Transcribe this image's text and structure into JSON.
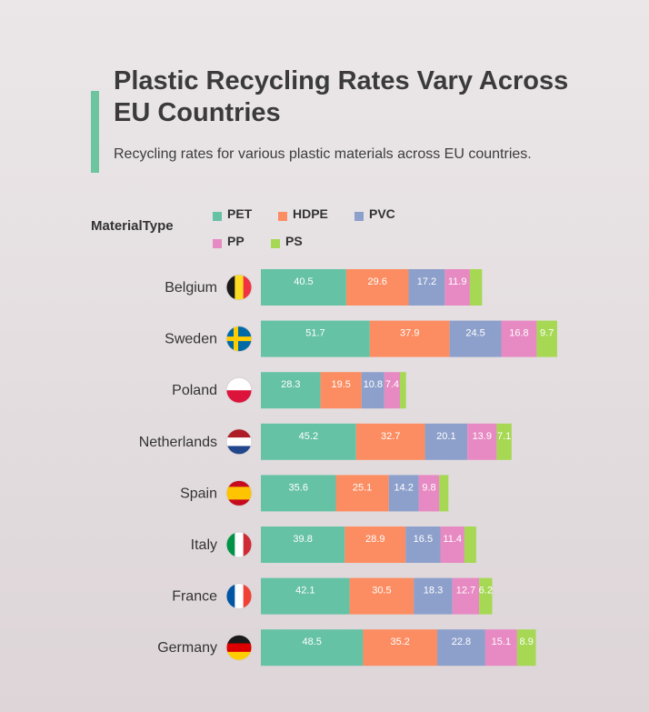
{
  "header": {
    "title": "Plastic Recycling Rates Vary Across EU Countries",
    "subtitle": "Recycling rates for various plastic materials across EU countries."
  },
  "legend": {
    "title": "MaterialType",
    "items": [
      {
        "label": "PET",
        "color": "#66c2a5"
      },
      {
        "label": "HDPE",
        "color": "#fc8d62"
      },
      {
        "label": "PVC",
        "color": "#8da0cb"
      },
      {
        "label": "PP",
        "color": "#e78ac3"
      },
      {
        "label": "PS",
        "color": "#a6d854"
      }
    ]
  },
  "chart_data": {
    "type": "bar",
    "orientation": "horizontal",
    "stacked": true,
    "categories": [
      "Belgium",
      "Sweden",
      "Poland",
      "Netherlands",
      "Spain",
      "Italy",
      "France",
      "Germany"
    ],
    "series": [
      {
        "name": "PET",
        "values": [
          40.5,
          51.7,
          28.3,
          45.2,
          35.6,
          39.8,
          42.1,
          48.5
        ]
      },
      {
        "name": "HDPE",
        "values": [
          29.6,
          37.9,
          19.5,
          32.7,
          25.1,
          28.9,
          30.5,
          35.2
        ]
      },
      {
        "name": "PVC",
        "values": [
          17.2,
          24.5,
          10.8,
          20.1,
          14.2,
          16.5,
          18.3,
          22.8
        ]
      },
      {
        "name": "PP",
        "values": [
          11.9,
          16.8,
          7.4,
          13.9,
          9.8,
          11.4,
          12.7,
          15.1
        ]
      },
      {
        "name": "PS",
        "values": [
          5.8,
          9.7,
          2.9,
          7.1,
          4.3,
          5.6,
          6.2,
          8.9
        ]
      }
    ],
    "data_labels": [
      [
        "40.5",
        "29.6",
        "17.2",
        "11.9",
        ""
      ],
      [
        "51.7",
        "37.9",
        "24.5",
        "16.8",
        "9.7"
      ],
      [
        "28.3",
        "19.5",
        "10.8",
        "7.4",
        ""
      ],
      [
        "45.2",
        "32.7",
        "20.1",
        "13.9",
        "7.1"
      ],
      [
        "35.6",
        "25.1",
        "14.2",
        "9.8",
        ""
      ],
      [
        "39.8",
        "28.9",
        "16.5",
        "11.4",
        ""
      ],
      [
        "42.1",
        "30.5",
        "18.3",
        "12.7",
        "6.2"
      ],
      [
        "48.5",
        "35.2",
        "22.8",
        "15.1",
        "8.9"
      ]
    ],
    "flag_icons": [
      "belgium-flag",
      "sweden-flag",
      "poland-flag",
      "netherlands-flag",
      "spain-flag",
      "italy-flag",
      "france-flag",
      "germany-flag"
    ],
    "xlabel": "",
    "ylabel": "",
    "grid": false,
    "legend_position": "top"
  }
}
